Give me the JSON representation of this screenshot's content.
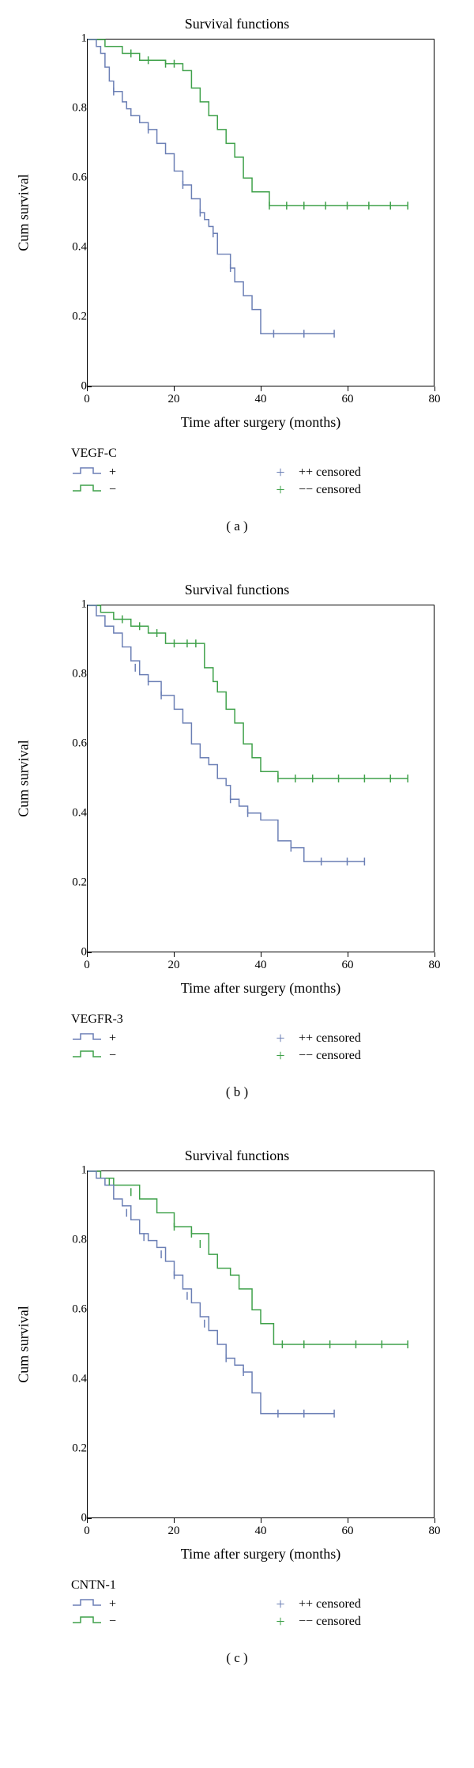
{
  "global": {
    "chart_title": "Survival functions",
    "y_label": "Cum survival",
    "x_label": "Time after surgery (months)",
    "x_ticks": [
      0,
      20,
      40,
      60,
      80
    ],
    "y_ticks": [
      0,
      0.2,
      0.4,
      0.6,
      0.8,
      1
    ],
    "x_range": [
      0,
      80
    ],
    "y_range": [
      0,
      1
    ],
    "colors": {
      "pos": "#6b7fb5",
      "neg": "#3fa14a",
      "axis": "#000000",
      "bg": "#ffffff"
    },
    "legend": {
      "pos_label": "+",
      "neg_label": "−",
      "pos_censored": "++ censored",
      "neg_censored": "−− censored"
    }
  },
  "panels": [
    {
      "id": "a",
      "panel_label": "( a )",
      "group_name": "VEGF-C",
      "series": {
        "pos": {
          "steps": [
            [
              0,
              1.0
            ],
            [
              2,
              0.98
            ],
            [
              3,
              0.96
            ],
            [
              4,
              0.92
            ],
            [
              5,
              0.88
            ],
            [
              6,
              0.85
            ],
            [
              8,
              0.82
            ],
            [
              9,
              0.8
            ],
            [
              10,
              0.78
            ],
            [
              12,
              0.76
            ],
            [
              14,
              0.74
            ],
            [
              16,
              0.7
            ],
            [
              18,
              0.67
            ],
            [
              20,
              0.62
            ],
            [
              22,
              0.58
            ],
            [
              24,
              0.54
            ],
            [
              26,
              0.5
            ],
            [
              27,
              0.48
            ],
            [
              28,
              0.46
            ],
            [
              29,
              0.44
            ],
            [
              30,
              0.38
            ],
            [
              33,
              0.34
            ],
            [
              34,
              0.3
            ],
            [
              36,
              0.26
            ],
            [
              38,
              0.22
            ],
            [
              40,
              0.15
            ],
            [
              57,
              0.15
            ]
          ],
          "censored": [
            [
              6,
              0.85
            ],
            [
              14,
              0.74
            ],
            [
              22,
              0.58
            ],
            [
              26,
              0.5
            ],
            [
              29,
              0.44
            ],
            [
              33,
              0.34
            ],
            [
              43,
              0.15
            ],
            [
              50,
              0.15
            ],
            [
              57,
              0.15
            ]
          ]
        },
        "neg": {
          "steps": [
            [
              0,
              1.0
            ],
            [
              4,
              0.98
            ],
            [
              8,
              0.96
            ],
            [
              12,
              0.94
            ],
            [
              18,
              0.93
            ],
            [
              22,
              0.91
            ],
            [
              24,
              0.86
            ],
            [
              26,
              0.82
            ],
            [
              28,
              0.78
            ],
            [
              30,
              0.74
            ],
            [
              32,
              0.7
            ],
            [
              34,
              0.66
            ],
            [
              36,
              0.6
            ],
            [
              38,
              0.56
            ],
            [
              42,
              0.52
            ],
            [
              74,
              0.52
            ]
          ],
          "censored": [
            [
              10,
              0.96
            ],
            [
              14,
              0.94
            ],
            [
              18,
              0.93
            ],
            [
              20,
              0.93
            ],
            [
              42,
              0.52
            ],
            [
              46,
              0.52
            ],
            [
              50,
              0.52
            ],
            [
              55,
              0.52
            ],
            [
              60,
              0.52
            ],
            [
              65,
              0.52
            ],
            [
              70,
              0.52
            ],
            [
              74,
              0.52
            ]
          ]
        }
      }
    },
    {
      "id": "b",
      "panel_label": "( b )",
      "group_name": "VEGFR-3",
      "series": {
        "pos": {
          "steps": [
            [
              0,
              1.0
            ],
            [
              2,
              0.97
            ],
            [
              4,
              0.94
            ],
            [
              6,
              0.92
            ],
            [
              8,
              0.88
            ],
            [
              10,
              0.84
            ],
            [
              12,
              0.8
            ],
            [
              14,
              0.78
            ],
            [
              17,
              0.74
            ],
            [
              20,
              0.7
            ],
            [
              22,
              0.66
            ],
            [
              24,
              0.6
            ],
            [
              26,
              0.56
            ],
            [
              28,
              0.54
            ],
            [
              30,
              0.5
            ],
            [
              32,
              0.48
            ],
            [
              33,
              0.44
            ],
            [
              35,
              0.42
            ],
            [
              37,
              0.4
            ],
            [
              40,
              0.38
            ],
            [
              44,
              0.32
            ],
            [
              47,
              0.3
            ],
            [
              50,
              0.26
            ],
            [
              64,
              0.26
            ]
          ],
          "censored": [
            [
              11,
              0.82
            ],
            [
              14,
              0.78
            ],
            [
              17,
              0.74
            ],
            [
              33,
              0.44
            ],
            [
              37,
              0.4
            ],
            [
              47,
              0.3
            ],
            [
              54,
              0.26
            ],
            [
              60,
              0.26
            ],
            [
              64,
              0.26
            ]
          ]
        },
        "neg": {
          "steps": [
            [
              0,
              1.0
            ],
            [
              3,
              0.98
            ],
            [
              6,
              0.96
            ],
            [
              10,
              0.94
            ],
            [
              14,
              0.92
            ],
            [
              18,
              0.89
            ],
            [
              22,
              0.89
            ],
            [
              27,
              0.82
            ],
            [
              29,
              0.78
            ],
            [
              30,
              0.75
            ],
            [
              32,
              0.7
            ],
            [
              34,
              0.66
            ],
            [
              36,
              0.6
            ],
            [
              38,
              0.56
            ],
            [
              40,
              0.52
            ],
            [
              44,
              0.5
            ],
            [
              74,
              0.5
            ]
          ],
          "censored": [
            [
              8,
              0.96
            ],
            [
              12,
              0.94
            ],
            [
              16,
              0.92
            ],
            [
              20,
              0.89
            ],
            [
              23,
              0.89
            ],
            [
              25,
              0.89
            ],
            [
              44,
              0.5
            ],
            [
              48,
              0.5
            ],
            [
              52,
              0.5
            ],
            [
              58,
              0.5
            ],
            [
              64,
              0.5
            ],
            [
              70,
              0.5
            ],
            [
              74,
              0.5
            ]
          ]
        }
      }
    },
    {
      "id": "c",
      "panel_label": "( c )",
      "group_name": "CNTN-1",
      "series": {
        "pos": {
          "steps": [
            [
              0,
              1.0
            ],
            [
              2,
              0.98
            ],
            [
              4,
              0.96
            ],
            [
              6,
              0.92
            ],
            [
              8,
              0.9
            ],
            [
              10,
              0.86
            ],
            [
              12,
              0.82
            ],
            [
              14,
              0.8
            ],
            [
              16,
              0.78
            ],
            [
              18,
              0.74
            ],
            [
              20,
              0.7
            ],
            [
              22,
              0.66
            ],
            [
              24,
              0.62
            ],
            [
              26,
              0.58
            ],
            [
              28,
              0.54
            ],
            [
              30,
              0.5
            ],
            [
              32,
              0.46
            ],
            [
              34,
              0.44
            ],
            [
              36,
              0.42
            ],
            [
              38,
              0.36
            ],
            [
              40,
              0.3
            ],
            [
              57,
              0.3
            ]
          ],
          "censored": [
            [
              9,
              0.88
            ],
            [
              13,
              0.81
            ],
            [
              17,
              0.76
            ],
            [
              20,
              0.7
            ],
            [
              23,
              0.64
            ],
            [
              27,
              0.56
            ],
            [
              32,
              0.46
            ],
            [
              36,
              0.42
            ],
            [
              44,
              0.3
            ],
            [
              50,
              0.3
            ],
            [
              57,
              0.3
            ]
          ]
        },
        "neg": {
          "steps": [
            [
              0,
              1.0
            ],
            [
              3,
              0.98
            ],
            [
              6,
              0.96
            ],
            [
              8,
              0.96
            ],
            [
              12,
              0.92
            ],
            [
              16,
              0.88
            ],
            [
              20,
              0.84
            ],
            [
              24,
              0.82
            ],
            [
              28,
              0.76
            ],
            [
              30,
              0.72
            ],
            [
              33,
              0.7
            ],
            [
              35,
              0.66
            ],
            [
              38,
              0.6
            ],
            [
              40,
              0.56
            ],
            [
              43,
              0.5
            ],
            [
              45,
              0.5
            ],
            [
              74,
              0.5
            ]
          ],
          "censored": [
            [
              5,
              0.97
            ],
            [
              10,
              0.94
            ],
            [
              20,
              0.84
            ],
            [
              24,
              0.82
            ],
            [
              26,
              0.79
            ],
            [
              45,
              0.5
            ],
            [
              50,
              0.5
            ],
            [
              56,
              0.5
            ],
            [
              62,
              0.5
            ],
            [
              68,
              0.5
            ],
            [
              74,
              0.5
            ]
          ]
        }
      }
    }
  ]
}
